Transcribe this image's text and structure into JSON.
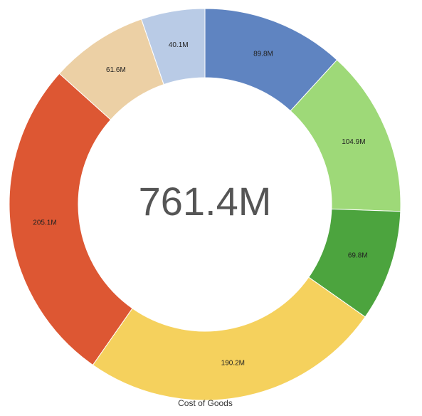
{
  "chart_data": {
    "type": "pie",
    "variant": "donut",
    "title": "",
    "xlabel": "Cost of Goods",
    "center_label": "761.4M",
    "categories": [
      "",
      "",
      "",
      "",
      "",
      "",
      ""
    ],
    "values": [
      89.8,
      104.9,
      69.8,
      190.2,
      205.1,
      61.6,
      40.1
    ],
    "value_labels": [
      "89.8M",
      "104.9M",
      "69.8M",
      "190.2M",
      "205.1M",
      "61.6M",
      "40.1M"
    ],
    "units": "M",
    "colors": [
      "#5f84c1",
      "#9ed978",
      "#4ca43e",
      "#f5d15d",
      "#dd5733",
      "#ecd0a5",
      "#b9cbe6"
    ],
    "start_angle": "12 o'clock",
    "direction": "clockwise",
    "legend": "none"
  }
}
